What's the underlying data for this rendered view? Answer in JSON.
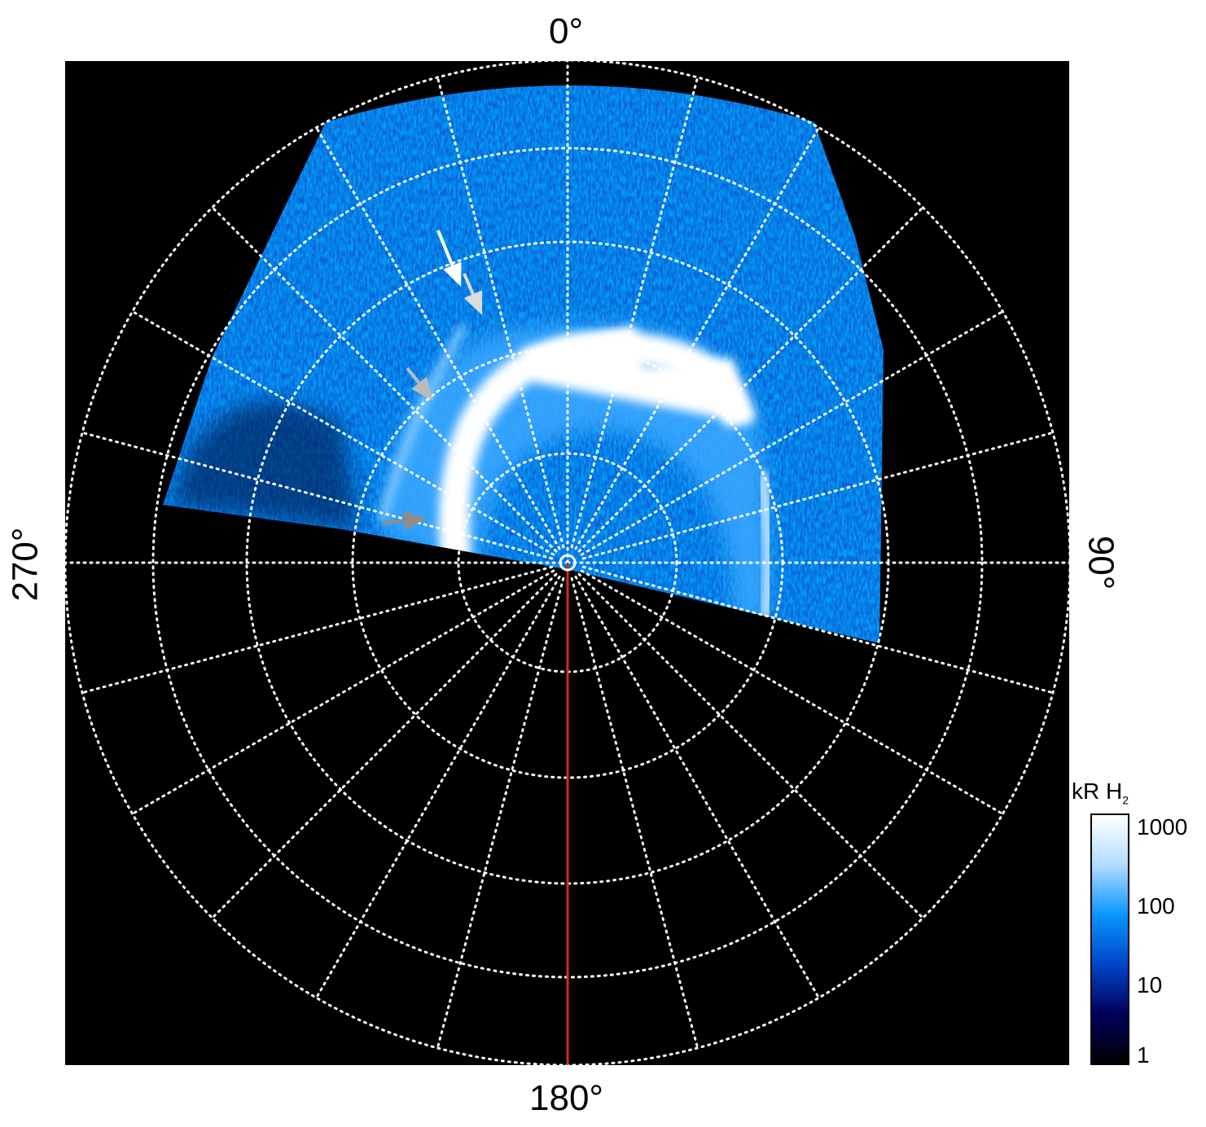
{
  "chart_data": {
    "type": "heatmap",
    "projection": "polar",
    "angle_labels": {
      "top": "0°",
      "right": "90°",
      "bottom": "180°",
      "left": "270°"
    },
    "colorbar": {
      "title": "kR H",
      "title_subscript": "2",
      "scale": "log",
      "range": [
        1,
        1000
      ],
      "ticks": [
        "1",
        "10",
        "100",
        "1000"
      ],
      "colors": [
        "#000000",
        "#00005a",
        "#0046c8",
        "#0a96ff",
        "#b4dcff",
        "#ffffff"
      ]
    },
    "grid": true,
    "meridian_marker_color": "#d03010",
    "arrows": [
      {
        "color": "#ffffff"
      },
      {
        "color": "#dcdcdc"
      },
      {
        "color": "#bbbbbb"
      },
      {
        "color": "#8c8c8c"
      }
    ]
  }
}
